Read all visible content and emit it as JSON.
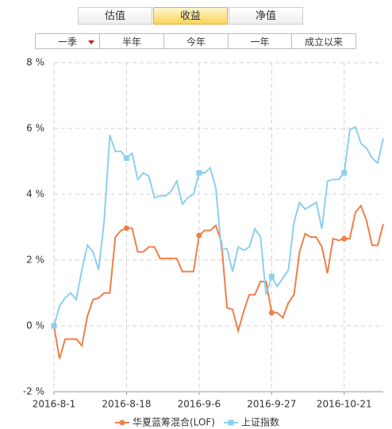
{
  "tabs": [
    {
      "label": "估值",
      "active": false
    },
    {
      "label": "收益",
      "active": true
    },
    {
      "label": "净值",
      "active": false
    }
  ],
  "periods": [
    "一季",
    "半年",
    "今年",
    "一年",
    "成立以来"
  ],
  "chart_data": {
    "type": "line",
    "categories": [
      "2016-8-1",
      null,
      null,
      null,
      null,
      null,
      null,
      null,
      null,
      null,
      null,
      null,
      null,
      "2016-8-18",
      null,
      null,
      null,
      null,
      null,
      null,
      null,
      null,
      null,
      null,
      null,
      null,
      "2016-9-6",
      null,
      null,
      null,
      null,
      null,
      null,
      null,
      null,
      null,
      null,
      null,
      null,
      "2016-9-27",
      null,
      null,
      null,
      null,
      null,
      null,
      null,
      null,
      null,
      null,
      null,
      null,
      "2016-10-21",
      null,
      null,
      null,
      null,
      null,
      null,
      null
    ],
    "series": [
      {
        "name": "华夏蓝筹混合(LOF)",
        "color": "#f07f4a",
        "marker": "circle",
        "values": [
          0,
          -1.0,
          -0.4,
          -0.4,
          -0.4,
          -0.6,
          0.3,
          0.8,
          0.85,
          1.0,
          1.0,
          2.7,
          2.9,
          2.97,
          2.97,
          2.25,
          2.25,
          2.4,
          2.4,
          2.05,
          2.05,
          2.05,
          2.05,
          1.65,
          1.65,
          1.65,
          2.75,
          2.9,
          2.9,
          3.05,
          2.55,
          0.55,
          0.5,
          -0.15,
          0.45,
          0.95,
          0.95,
          1.35,
          1.35,
          0.4,
          0.4,
          0.25,
          0.7,
          0.95,
          2.25,
          2.8,
          2.7,
          2.7,
          2.4,
          1.6,
          2.65,
          2.6,
          2.65,
          2.65,
          3.45,
          3.65,
          3.2,
          2.45,
          2.45,
          3.1
        ]
      },
      {
        "name": "上证指数",
        "color": "#8ccfee",
        "marker": "square",
        "values": [
          0,
          0.6,
          0.85,
          1.0,
          0.8,
          1.7,
          2.45,
          2.25,
          1.7,
          3.2,
          5.8,
          5.3,
          5.3,
          5.1,
          5.25,
          4.45,
          4.65,
          4.55,
          3.9,
          3.95,
          3.95,
          4.1,
          4.4,
          3.7,
          3.9,
          4.0,
          4.65,
          4.65,
          4.8,
          4.2,
          2.3,
          2.35,
          1.65,
          2.4,
          2.3,
          2.4,
          2.95,
          2.7,
          0.95,
          1.5,
          1.2,
          1.45,
          1.7,
          3.15,
          3.75,
          3.55,
          3.65,
          3.75,
          2.95,
          4.4,
          4.45,
          4.45,
          4.65,
          5.95,
          6.05,
          5.55,
          5.4,
          5.1,
          4.95,
          5.7
        ]
      }
    ],
    "ylim": [
      -2,
      8
    ],
    "yticks": [
      {
        "value": 8,
        "label": "8 %"
      },
      {
        "value": 6,
        "label": "6 %"
      },
      {
        "value": 4,
        "label": "4 %"
      },
      {
        "value": 2,
        "label": "2 %"
      },
      {
        "value": 0,
        "label": "0 %"
      },
      {
        "value": -2,
        "label": "-2 %"
      }
    ],
    "grid": true,
    "legend": "bottom"
  }
}
